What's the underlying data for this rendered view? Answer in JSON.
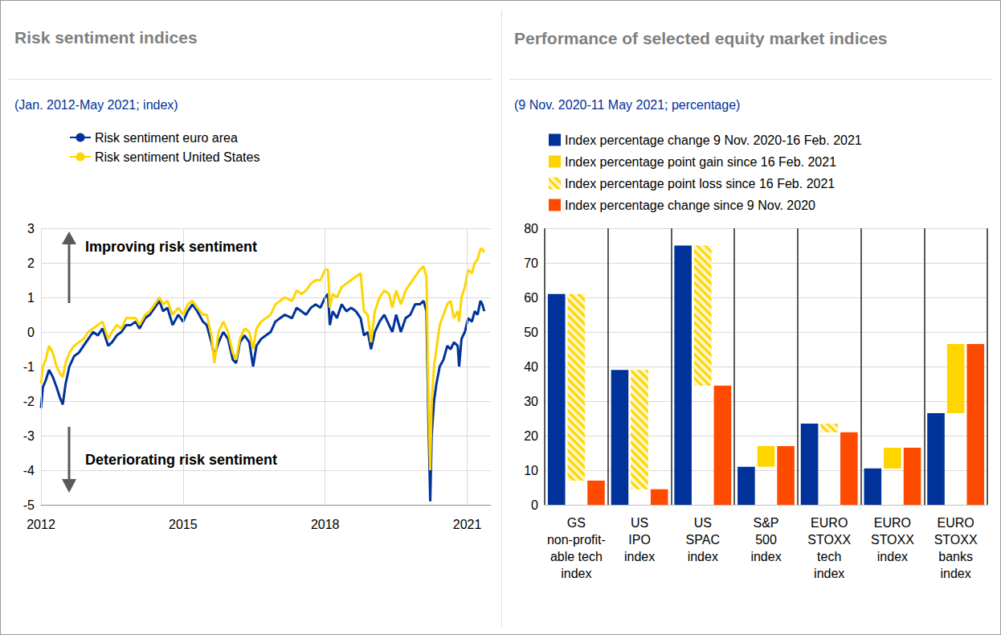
{
  "chart_data": [
    {
      "type": "line",
      "title": "Risk sentiment indices",
      "subtitle": "(Jan. 2012-May 2021; index)",
      "annotations": [
        "Improving risk sentiment",
        "Deteriorating risk sentiment"
      ],
      "x": [
        2012,
        2012.04,
        2012.1,
        2012.17,
        2012.25,
        2012.33,
        2012.4,
        2012.46,
        2012.52,
        2012.6,
        2012.7,
        2012.8,
        2012.9,
        2013,
        2013.1,
        2013.2,
        2013.3,
        2013.42,
        2013.5,
        2013.6,
        2013.7,
        2013.8,
        2013.9,
        2014,
        2014.08,
        2014.2,
        2014.3,
        2014.4,
        2014.5,
        2014.58,
        2014.67,
        2014.78,
        2014.9,
        2015,
        2015.1,
        2015.2,
        2015.3,
        2015.42,
        2015.5,
        2015.6,
        2015.66,
        2015.75,
        2015.85,
        2015.95,
        2016.05,
        2016.12,
        2016.2,
        2016.3,
        2016.4,
        2016.48,
        2016.55,
        2016.65,
        2016.75,
        2016.85,
        2016.95,
        2017.05,
        2017.15,
        2017.3,
        2017.4,
        2017.5,
        2017.6,
        2017.7,
        2017.8,
        2017.9,
        2018,
        2018.06,
        2018.1,
        2018.16,
        2018.25,
        2018.35,
        2018.45,
        2018.55,
        2018.65,
        2018.75,
        2018.82,
        2018.9,
        2018.97,
        2019.05,
        2019.15,
        2019.25,
        2019.35,
        2019.42,
        2019.5,
        2019.6,
        2019.7,
        2019.8,
        2019.9,
        2020,
        2020.08,
        2020.14,
        2020.18,
        2020.22,
        2020.25,
        2020.3,
        2020.35,
        2020.42,
        2020.5,
        2020.58,
        2020.65,
        2020.72,
        2020.8,
        2020.83,
        2020.88,
        2020.95,
        2021.02,
        2021.1,
        2021.16,
        2021.22,
        2021.28,
        2021.32,
        2021.36
      ],
      "series": [
        {
          "name": "Risk sentiment euro area",
          "color": "#003299",
          "values": [
            -2.2,
            -1.6,
            -1.4,
            -1.1,
            -1.3,
            -1.6,
            -1.9,
            -2.1,
            -1.5,
            -1.0,
            -0.7,
            -0.6,
            -0.4,
            -0.2,
            0,
            -0.1,
            0.1,
            -0.4,
            -0.3,
            -0.1,
            0,
            0.2,
            0.2,
            0.3,
            0.1,
            0.4,
            0.5,
            0.7,
            0.9,
            0.6,
            0.7,
            0.2,
            0.5,
            0.3,
            0.6,
            0.8,
            0.6,
            0.3,
            0.2,
            -0.3,
            -0.7,
            -0.3,
            0,
            -0.2,
            -0.8,
            -0.9,
            -0.3,
            -0.1,
            -0.3,
            -1.0,
            -0.4,
            -0.2,
            -0.1,
            0,
            0.3,
            0.4,
            0.5,
            0.4,
            0.7,
            0.6,
            0.5,
            0.7,
            0.8,
            0.7,
            1.0,
            1.1,
            0.2,
            0.6,
            0.4,
            0.8,
            0.6,
            0.7,
            0.6,
            0.4,
            -0.1,
            0,
            -0.5,
            0,
            0.3,
            0.5,
            0.2,
            0,
            0.5,
            0,
            0.4,
            0.5,
            0.8,
            0.8,
            0.9,
            0.6,
            -2.5,
            -4.9,
            -3.0,
            -2.0,
            -1.5,
            -1.0,
            -0.8,
            -0.4,
            -0.5,
            -0.3,
            -0.4,
            -1.0,
            -0.2,
            0,
            0.4,
            0.3,
            0.6,
            0.5,
            0.9,
            0.8,
            0.6
          ]
        },
        {
          "name": "Risk sentiment United States",
          "color": "#ffd500",
          "values": [
            -1.5,
            -1.0,
            -0.8,
            -0.4,
            -0.6,
            -1.0,
            -1.2,
            -1.3,
            -0.9,
            -0.6,
            -0.4,
            -0.3,
            -0.2,
            0,
            0.1,
            0.2,
            0.3,
            -0.2,
            0,
            0.2,
            0.1,
            0.4,
            0.4,
            0.4,
            0.2,
            0.5,
            0.6,
            0.8,
            1.0,
            0.8,
            0.9,
            0.5,
            0.7,
            0.5,
            0.8,
            0.9,
            0.7,
            0.5,
            0.5,
            -0.1,
            -0.9,
            0,
            0.3,
            0,
            -0.6,
            -0.8,
            -0.2,
            0.1,
            0,
            -0.5,
            0.1,
            0.3,
            0.4,
            0.5,
            0.8,
            0.9,
            1.0,
            0.9,
            1.2,
            1.1,
            1.2,
            1.4,
            1.5,
            1.5,
            1.8,
            1.8,
            0.7,
            1.1,
            1.0,
            1.3,
            1.4,
            1.5,
            1.6,
            1.7,
            0.6,
            0.5,
            -0.3,
            0.6,
            1.0,
            1.2,
            1.1,
            0.7,
            1.2,
            0.8,
            1.2,
            1.4,
            1.6,
            1.8,
            1.9,
            1.6,
            -1.8,
            -4.0,
            -2.0,
            -1.0,
            -0.5,
            0.2,
            0.5,
            0.8,
            0.9,
            0.4,
            0.6,
            0.3,
            1.0,
            1.3,
            1.8,
            1.7,
            2.0,
            2.1,
            2.4,
            2.4,
            2.3
          ]
        }
      ],
      "xlim": [
        2012,
        2021.5
      ],
      "xticks": [
        2012,
        2015,
        2018,
        2021
      ],
      "ylim": [
        -5,
        3
      ],
      "yticks": [
        -5,
        -4,
        -3,
        -2,
        -1,
        0,
        1,
        2,
        3
      ],
      "grid": true,
      "legend": "top-left"
    },
    {
      "type": "bar",
      "title": "Performance of selected equity market indices",
      "subtitle": "(9 Nov. 2020-11 May 2021; percentage)",
      "categories": [
        "GS\nnon-profit-\nable tech\nindex",
        "US\nIPO\nindex",
        "US\nSPAC\nindex",
        "S&P\n500\nindex",
        "EURO\nSTOXX\ntech\nindex",
        "EURO\nSTOXX\nindex",
        "EURO\nSTOXX\nbanks\nindex"
      ],
      "series": [
        {
          "name": "Index percentage change 9 Nov. 2020-16 Feb. 2021",
          "color": "#003299",
          "values": [
            61,
            39,
            75,
            11,
            23.5,
            10.5,
            26.5
          ]
        },
        {
          "name": "Index percentage point gain since 16 Feb. 2021",
          "color": "#ffd500",
          "values": [
            null,
            null,
            null,
            6,
            null,
            6,
            20
          ]
        },
        {
          "name": "Index percentage point loss since 16 Feb. 2021",
          "color": "#ffd500",
          "line_style": "hatched",
          "values": [
            54,
            34.5,
            40.5,
            null,
            2.5,
            null,
            null
          ]
        },
        {
          "name": "Index percentage change since 9 Nov. 2020",
          "color": "#ff4b00",
          "values": [
            7,
            4.5,
            34.5,
            17,
            21,
            16.5,
            46.5
          ]
        }
      ],
      "ylim": [
        0,
        80
      ],
      "yticks": [
        0,
        10,
        20,
        30,
        40,
        50,
        60,
        70,
        80
      ],
      "grid": true,
      "legend": "top-left"
    }
  ]
}
